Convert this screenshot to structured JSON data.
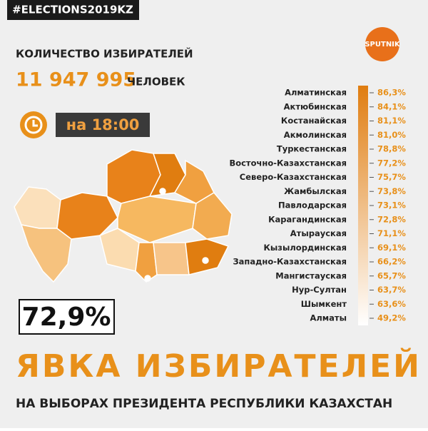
{
  "hashtag": "#ELECTIONS2019KZ",
  "header": {
    "label": "КОЛИЧЕСТВО ИЗБИРАТЕЛЕЙ",
    "count": "11 947 995",
    "unit": "ЧЕЛОВЕК"
  },
  "time": "на 18:00",
  "logo": "SPUTNIK",
  "regions": [
    {
      "name": "Алматинская",
      "value": "86,3%"
    },
    {
      "name": "Актюбинская",
      "value": "84,1%"
    },
    {
      "name": "Костанайская",
      "value": "81,1%"
    },
    {
      "name": "Акмолинская",
      "value": "81,0%"
    },
    {
      "name": "Туркестанская",
      "value": "78,8%"
    },
    {
      "name": "Восточно-Казахстанская",
      "value": "77,2%"
    },
    {
      "name": "Северо-Казахстанская",
      "value": "75,7%"
    },
    {
      "name": "Жамбылская",
      "value": "73,8%"
    },
    {
      "name": "Павлодарская",
      "value": "73,1%"
    },
    {
      "name": "Карагандинская",
      "value": "72,8%"
    },
    {
      "name": "Атырауская",
      "value": "71,1%"
    },
    {
      "name": "Кызылординская",
      "value": "69,1%"
    },
    {
      "name": "Западно-Казахстанская",
      "value": "66,2%"
    },
    {
      "name": "Мангистауская",
      "value": "65,7%"
    },
    {
      "name": "Нур-Султан",
      "value": "63,7%"
    },
    {
      "name": "Шымкент",
      "value": "63,6%"
    },
    {
      "name": "Алматы",
      "value": "49,2%"
    }
  ],
  "turnout": "72,9%",
  "title": "ЯВКА ИЗБИРАТЕЛЕЙ",
  "subtitle": "НА ВЫБОРАХ ПРЕЗИДЕНТА РЕСПУБЛИКИ КАЗАХСТАН"
}
